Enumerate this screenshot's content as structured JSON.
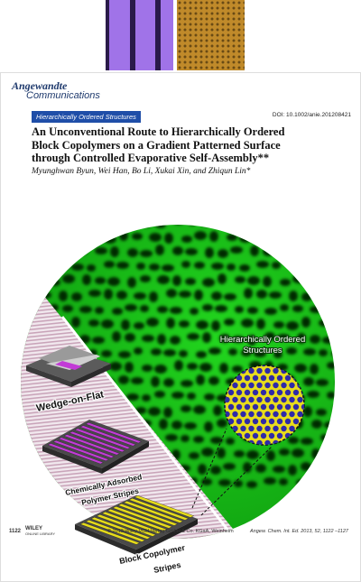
{
  "journal": {
    "line1": "Angewandte",
    "line2": "Communications"
  },
  "section_tag": "Hierarchically Ordered Structures",
  "doi": "DOI: 10.1002/anie.201208421",
  "title": "An Unconventional Route to Hierarchically Ordered Block Copolymers on a Gradient Patterned Surface through Controlled Evaporative Self-Assembly**",
  "title_lines": [
    "An Unconventional Route to Hierarchically Ordered",
    "Block Copolymers on a Gradient Patterned Surface",
    "through Controlled Evaporative Self-Assembly**"
  ],
  "authors": "Myunghwan Byun, Wei Han, Bo Li, Xukai Xin, and Zhiqun Lin*",
  "figure": {
    "label_hierarchical_1": "Hierarchically Ordered",
    "label_hierarchical_2": "Structures",
    "label_wedge": "Wedge-on-Flat",
    "label_chem_1": "Chemically Adsorbed",
    "label_chem_2": "Polymer Stripes",
    "label_block_1": "Block Copolymer",
    "label_block_2": "Stripes"
  },
  "footer": {
    "page_number": "1122",
    "publisher_logo": "WILEY",
    "publisher_sub": "ONLINE LIBRARY",
    "copyright": "© 2013 Wiley-VCH Verlag GmbH & Co. KGaA, Weinheim",
    "citation": "Angew. Chem. Int. Ed. 2013, 52, 1122 –1127"
  },
  "colors": {
    "brand_blue": "#1f4ea8",
    "green_film": "#19c419",
    "magenta_stripe": "#c23bd6",
    "yellow_stripe": "#e6dc1a"
  }
}
